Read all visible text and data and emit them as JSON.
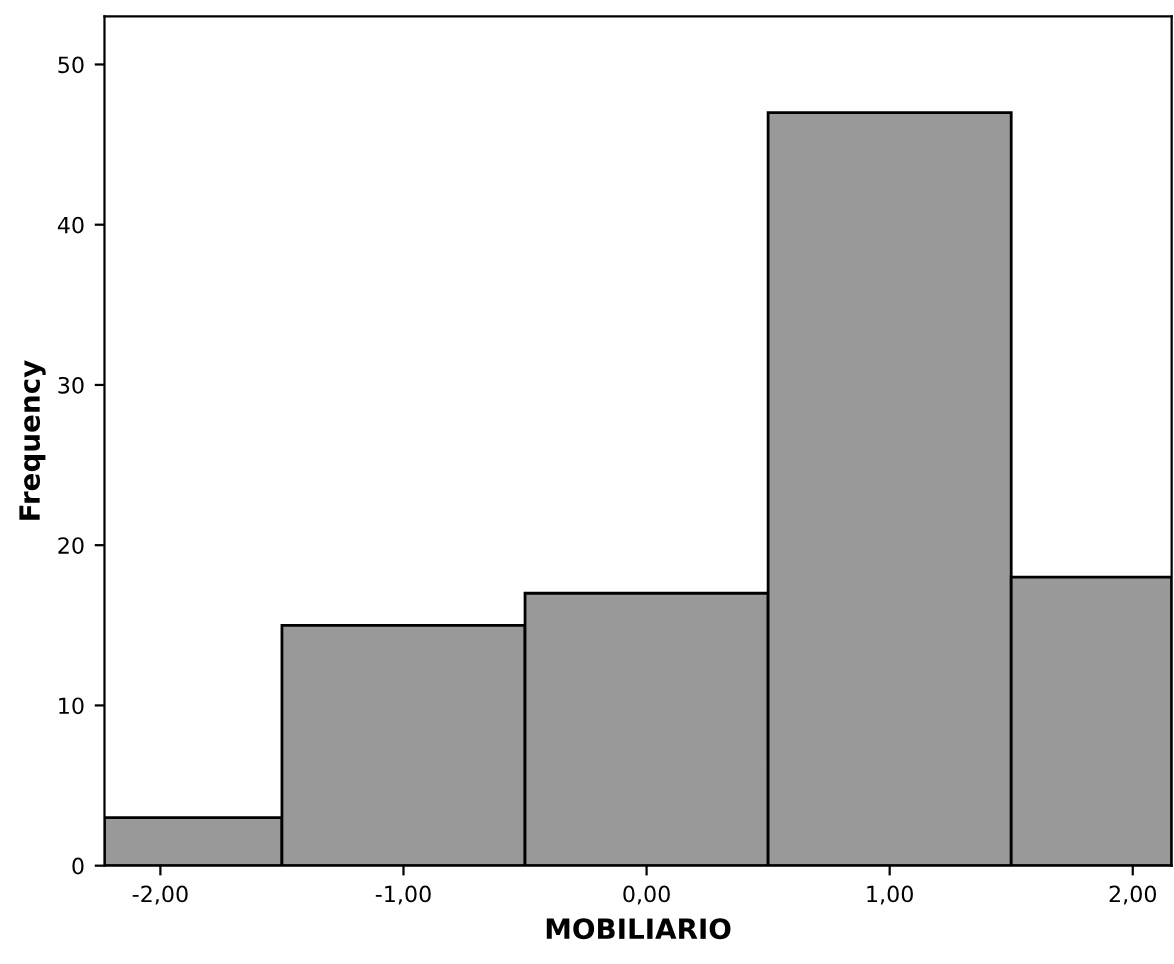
{
  "chart_data": {
    "type": "histogram",
    "xlabel": "MOBILIARIO",
    "ylabel": "Frequency",
    "bins": [
      -2.23,
      -1.5,
      -0.5,
      0.5,
      1.5,
      2.16
    ],
    "values": [
      3,
      15,
      17,
      47,
      18
    ],
    "color": "#999999",
    "xlim": [
      -2.23,
      2.16
    ],
    "ylim": [
      0,
      53
    ],
    "xticks": [
      {
        "value": -2,
        "label": "-2,00"
      },
      {
        "value": -1,
        "label": "-1,00"
      },
      {
        "value": 0,
        "label": "0,00"
      },
      {
        "value": 1,
        "label": "1,00"
      },
      {
        "value": 2,
        "label": "2,00"
      }
    ],
    "yticks": [
      0,
      10,
      20,
      30,
      40,
      50
    ],
    "grid": false
  }
}
